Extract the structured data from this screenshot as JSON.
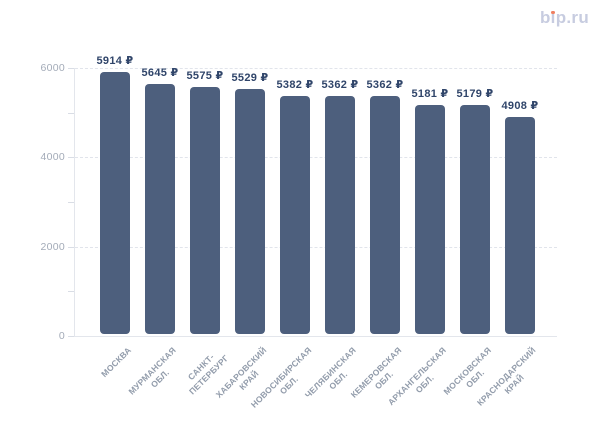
{
  "logo": {
    "text": "bip.ru",
    "color": "#c7cce0",
    "dot_color": "#ef7f60"
  },
  "chart_data": {
    "type": "bar",
    "title": "",
    "xlabel": "",
    "ylabel": "",
    "unit": "₽",
    "categories": [
      [
        "МОСКВА"
      ],
      [
        "МУРМАНСКАЯ",
        "ОБЛ."
      ],
      [
        "САНКТ-",
        "ПЕТЕРБУРГ"
      ],
      [
        "ХАБАРОВСКИЙ",
        "КРАЙ"
      ],
      [
        "НОВОСИБИРСКАЯ",
        "ОБЛ."
      ],
      [
        "ЧЕЛЯБИНСКАЯ",
        "ОБЛ."
      ],
      [
        "КЕМЕРОВСКАЯ",
        "ОБЛ."
      ],
      [
        "АРХАНГЕЛЬСКАЯ",
        "ОБЛ."
      ],
      [
        "МОСКОВСКАЯ",
        "ОБЛ."
      ],
      [
        "КРАСНОДАРСКИЙ",
        "КРАЙ"
      ]
    ],
    "values": [
      5914,
      5645,
      5575,
      5529,
      5382,
      5362,
      5362,
      5181,
      5179,
      4908
    ],
    "value_labels": [
      "5914 ₽",
      "5645 ₽",
      "5575 ₽",
      "5529 ₽",
      "5382 ₽",
      "5362 ₽",
      "5362 ₽",
      "5181 ₽",
      "5179 ₽",
      "4908 ₽"
    ],
    "ylim": [
      0,
      6000
    ],
    "y_ticks": [
      0,
      2000,
      4000,
      6000
    ],
    "y_minor_ticks": [
      1000,
      3000,
      5000
    ],
    "grid": "dashed horizontal at labeled ticks",
    "legend": "none",
    "colors": {
      "bar": "#4d5f7d",
      "value_label": "#30456a",
      "y_axis_label": "#a3abb8",
      "x_axis_label": "#929cab",
      "gridline": "#e1e4eb",
      "axis_line": "#e3e6ec"
    }
  }
}
